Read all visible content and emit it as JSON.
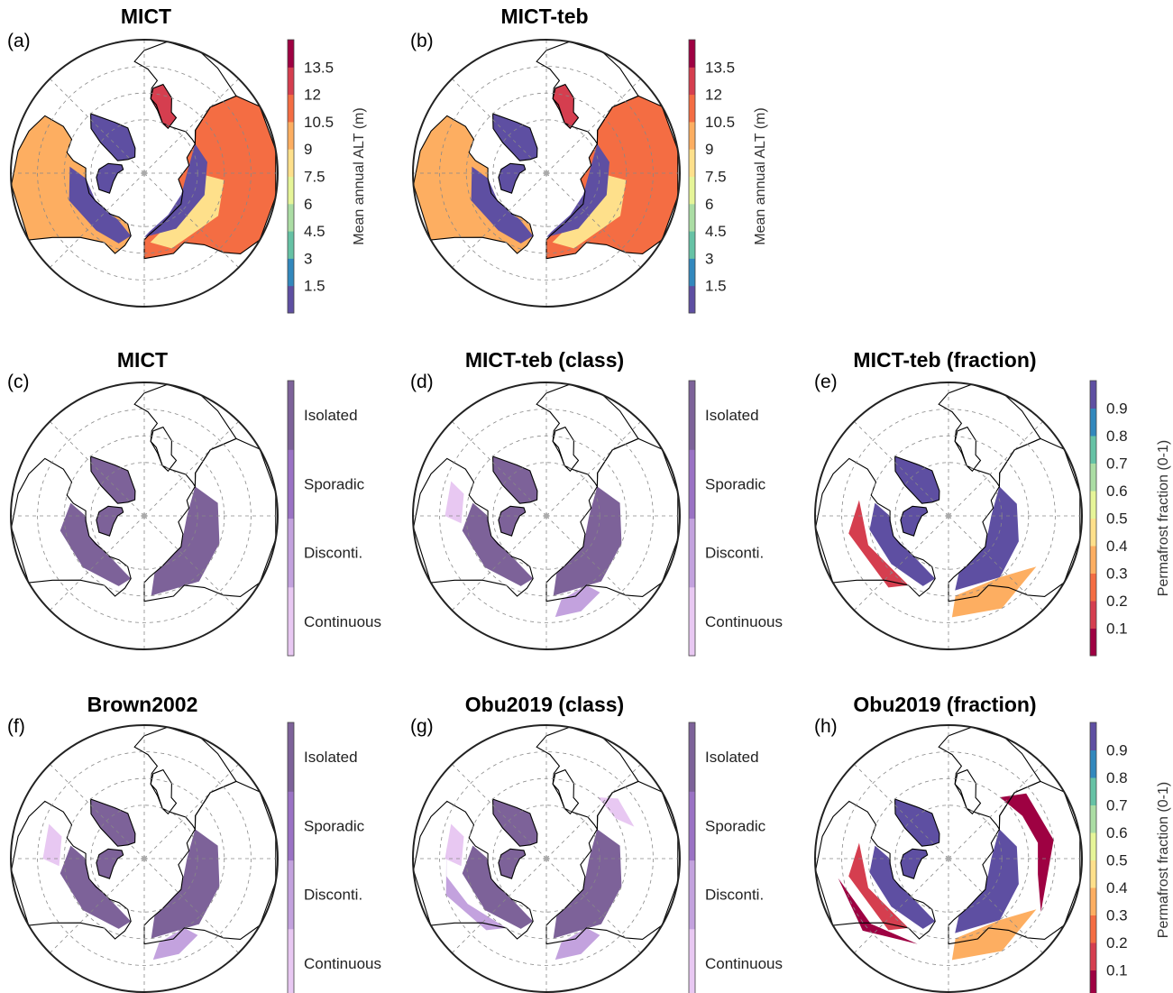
{
  "panels": [
    {
      "id": "a",
      "label": "(a)",
      "title": "MICT",
      "kind": "alt"
    },
    {
      "id": "b",
      "label": "(b)",
      "title": "MICT-teb",
      "kind": "alt"
    },
    {
      "id": "c",
      "label": "(c)",
      "title": "MICT",
      "kind": "class"
    },
    {
      "id": "d",
      "label": "(d)",
      "title": "MICT-teb (class)",
      "kind": "class"
    },
    {
      "id": "e",
      "label": "(e)",
      "title": "MICT-teb (fraction)",
      "kind": "fraction"
    },
    {
      "id": "f",
      "label": "(f)",
      "title": "Brown2002",
      "kind": "class"
    },
    {
      "id": "g",
      "label": "(g)",
      "title": "Obu2019 (class)",
      "kind": "class"
    },
    {
      "id": "h",
      "label": "(h)",
      "title": "Obu2019 (fraction)",
      "kind": "fraction"
    }
  ],
  "colorbars": {
    "alt": {
      "label": "Mean annual ALT (m)",
      "ticks": [
        "1.5",
        "3",
        "4.5",
        "6",
        "7.5",
        "9",
        "10.5",
        "12",
        "13.5"
      ],
      "colors": [
        "#5e4fa2",
        "#3288bd",
        "#66c2a5",
        "#abdda4",
        "#e6f598",
        "#fee08b",
        "#fdae61",
        "#f46d43",
        "#d53e4f",
        "#9e0142"
      ]
    },
    "class": {
      "classes": [
        "Isolated",
        "Sporadic",
        "Disconti.",
        "Continuous"
      ],
      "colors": [
        "#e8c8f2",
        "#c3a2de",
        "#9a72c4",
        "#7d6299"
      ]
    },
    "fraction": {
      "label": "Permafrost fraction (0-1)",
      "ticks": [
        "0.1",
        "0.2",
        "0.3",
        "0.4",
        "0.5",
        "0.6",
        "0.7",
        "0.8",
        "0.9"
      ],
      "colors": [
        "#9e0142",
        "#d53e4f",
        "#f46d43",
        "#fdae61",
        "#fee08b",
        "#e6f598",
        "#abdda4",
        "#66c2a5",
        "#3288bd",
        "#5e4fa2"
      ]
    }
  }
}
